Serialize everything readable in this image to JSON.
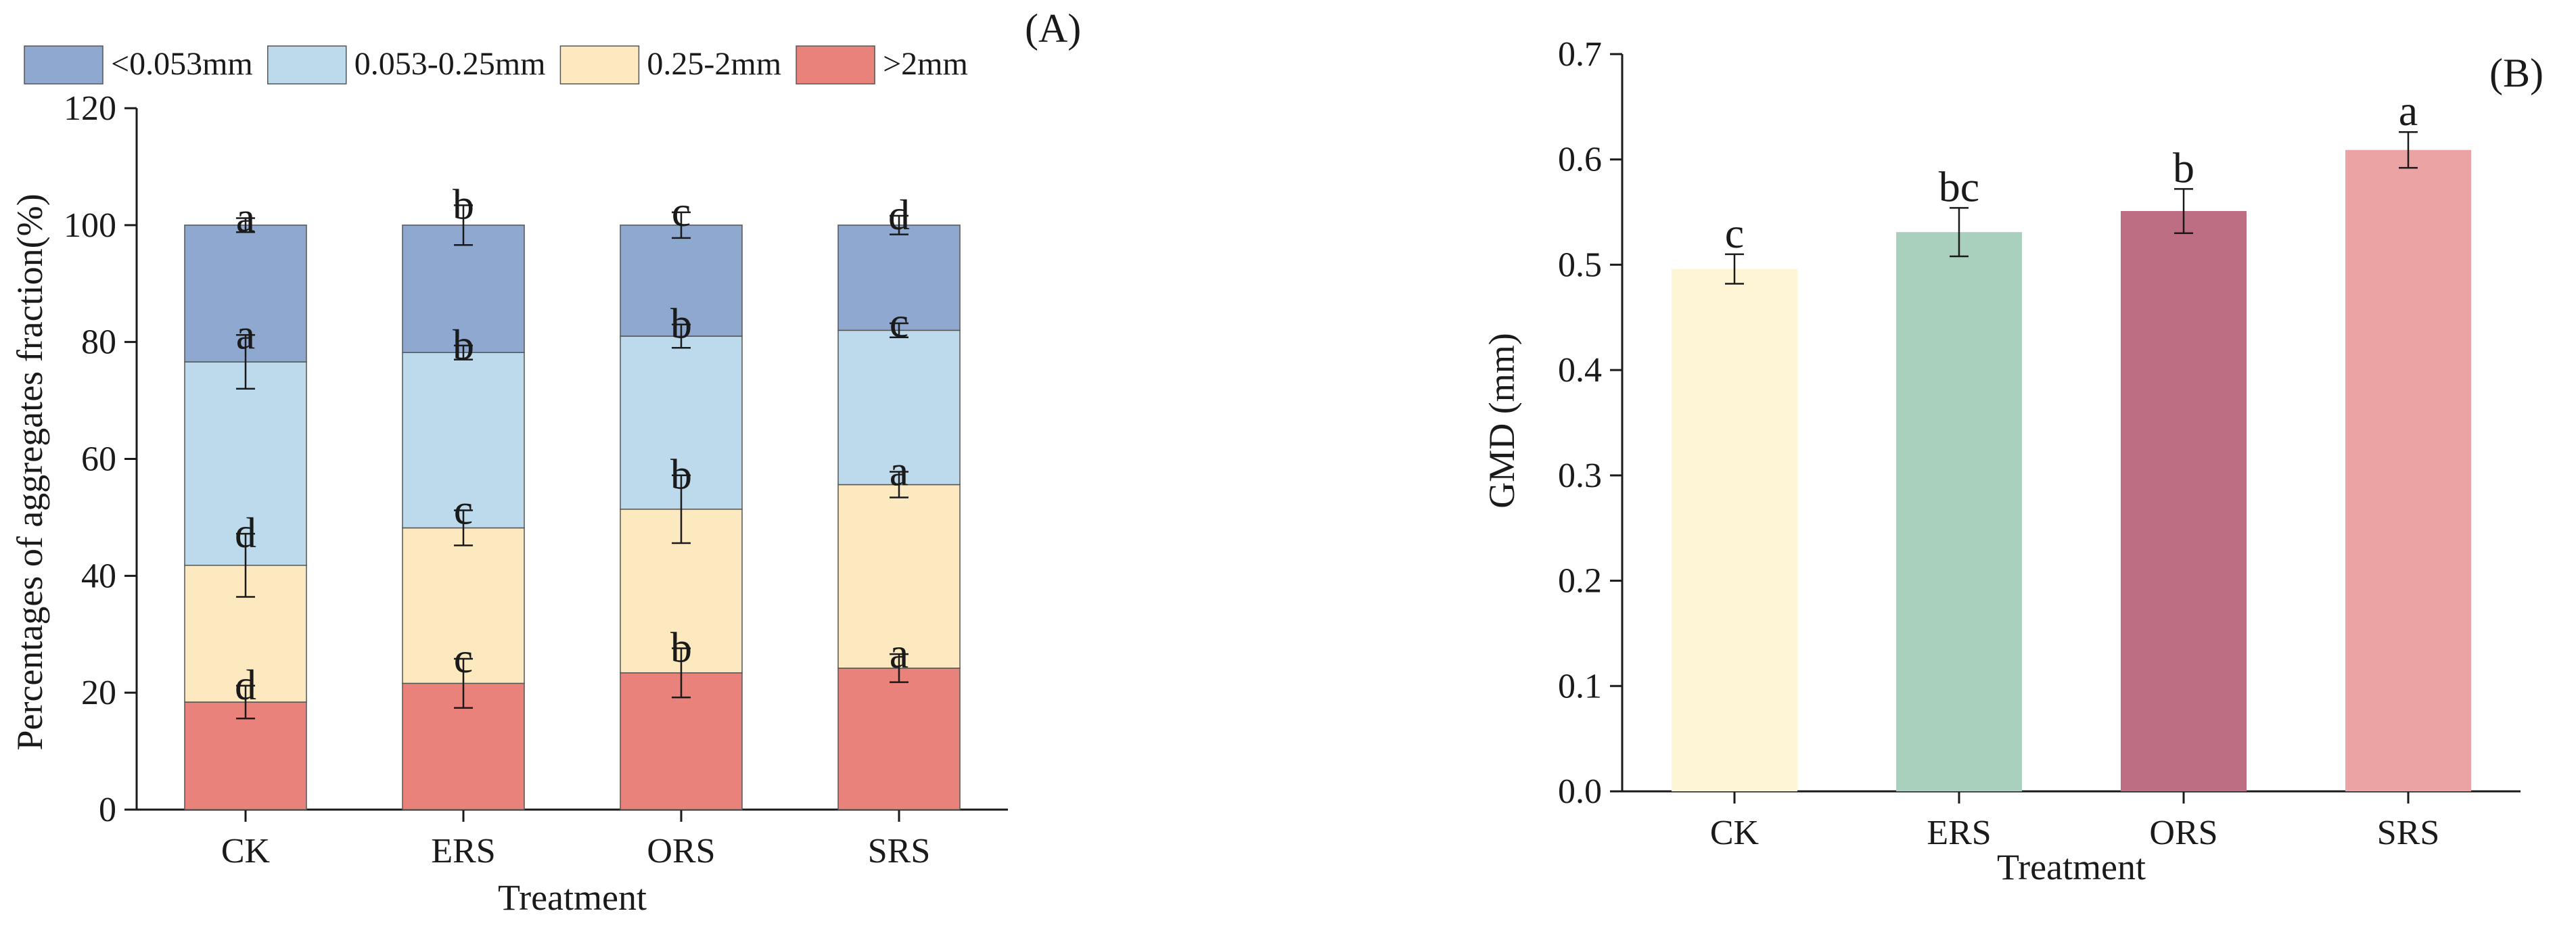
{
  "chart_data": [
    {
      "type": "bar",
      "stacked": true,
      "panel_label": "(A)",
      "xlabel": "Treatment",
      "ylabel": "Percentages of aggregates fraction(%)",
      "categories": [
        "CK",
        "ERS",
        "ORS",
        "SRS"
      ],
      "ylim": [
        0,
        120
      ],
      "yticks": [
        0,
        20,
        40,
        60,
        80,
        100,
        120
      ],
      "legend_position": "top",
      "series": [
        {
          "name": ">2mm",
          "color": "#e8827b",
          "values": [
            18.4,
            21.6,
            23.4,
            24.2
          ],
          "errors": [
            2.8,
            4.2,
            4.2,
            2.4
          ],
          "letters": [
            "d",
            "c",
            "b",
            "a"
          ]
        },
        {
          "name": "0.25-2mm",
          "color": "#fde9c0",
          "values": [
            23.4,
            26.6,
            28.0,
            31.4
          ],
          "errors": [
            5.4,
            3.0,
            5.8,
            2.2
          ],
          "letters": [
            "d",
            "c",
            "b",
            "a"
          ]
        },
        {
          "name": "0.053-0.25mm",
          "color": "#bdd9ec",
          "values": [
            34.8,
            30.0,
            29.6,
            26.4
          ],
          "errors": [
            4.6,
            1.2,
            2.0,
            1.2
          ],
          "letters": [
            "a",
            "b",
            "b",
            "c"
          ]
        },
        {
          "name": "<0.053mm",
          "color": "#8fa8d0",
          "values": [
            23.4,
            21.8,
            19.0,
            18.0
          ],
          "errors": [
            1.2,
            3.4,
            2.2,
            1.6
          ],
          "letters": [
            "a",
            "b",
            "c",
            "d"
          ]
        }
      ],
      "legend_order": [
        "<0.053mm",
        "0.053-0.25mm",
        "0.25-2mm",
        ">2mm"
      ]
    },
    {
      "type": "bar",
      "panel_label": "(B)",
      "xlabel": "Treatment",
      "ylabel": "GMD (mm)",
      "categories": [
        "CK",
        "ERS",
        "ORS",
        "SRS"
      ],
      "ylim": [
        0,
        0.7
      ],
      "yticks": [
        "0.0",
        "0.1",
        "0.2",
        "0.3",
        "0.4",
        "0.5",
        "0.6",
        "0.7"
      ],
      "values": [
        0.496,
        0.531,
        0.551,
        0.609
      ],
      "errors": [
        0.014,
        0.023,
        0.021,
        0.017
      ],
      "colors": [
        "#fdf5d6",
        "#a9cfbd",
        "#bd6e82",
        "#eba3a3"
      ],
      "letters": [
        "c",
        "bc",
        "b",
        "a"
      ]
    }
  ]
}
